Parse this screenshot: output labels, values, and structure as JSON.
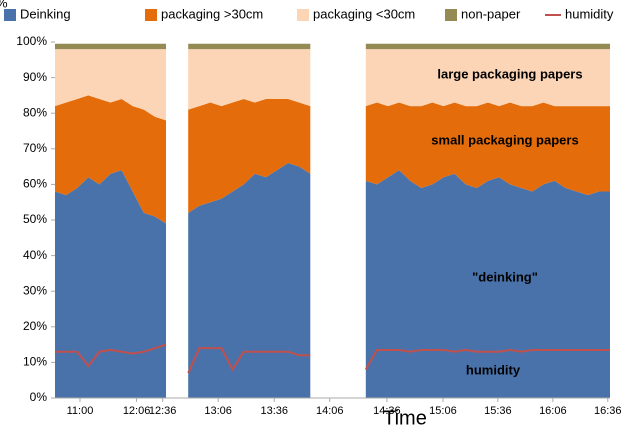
{
  "chart_data": {
    "type": "area",
    "stacked": true,
    "y_label": "%",
    "x_label": "Time",
    "annotations": [
      "large packaging papers",
      "small packaging papers",
      "\"deinking\"",
      "humidity"
    ],
    "x": [
      0,
      2,
      4,
      6,
      8,
      10,
      12,
      14,
      16,
      18,
      20,
      22,
      24,
      26,
      28,
      30,
      32,
      34,
      36,
      38,
      40,
      42,
      44,
      46,
      48,
      50,
      52,
      54,
      56,
      58,
      60,
      62,
      64,
      66,
      68,
      70,
      72,
      74,
      76,
      78,
      80,
      82,
      84,
      86,
      88,
      90,
      92,
      94,
      96,
      98,
      100
    ],
    "xlim": [
      0,
      100
    ],
    "xticks": [
      {
        "value": 4.5,
        "label": "11:00"
      },
      {
        "value": 14.7,
        "label": "12:06"
      },
      {
        "value": 19.4,
        "label": "12:36"
      },
      {
        "value": 29.4,
        "label": "13:06"
      },
      {
        "value": 39.5,
        "label": "13:36"
      },
      {
        "value": 49.5,
        "label": "14:06"
      },
      {
        "value": 59.8,
        "label": "14:36"
      },
      {
        "value": 69.9,
        "label": "15:06"
      },
      {
        "value": 79.8,
        "label": "15:36"
      },
      {
        "value": 89.7,
        "label": "16:06"
      },
      {
        "value": 99.6,
        "label": "16:36"
      }
    ],
    "ylim": [
      0,
      100
    ],
    "yticks": [
      {
        "value": 0,
        "label": "0%"
      },
      {
        "value": 10,
        "label": "10%"
      },
      {
        "value": 20,
        "label": "20%"
      },
      {
        "value": 30,
        "label": "30%"
      },
      {
        "value": 40,
        "label": "40%"
      },
      {
        "value": 50,
        "label": "50%"
      },
      {
        "value": 60,
        "label": "60%"
      },
      {
        "value": 70,
        "label": "70%"
      },
      {
        "value": 80,
        "label": "80%"
      },
      {
        "value": 90,
        "label": "90%"
      },
      {
        "value": 100,
        "label": "100%"
      }
    ],
    "legend": "top",
    "series": [
      {
        "name": "Deinking",
        "color": "#4a72aa",
        "values": [
          58,
          57,
          59,
          62,
          60,
          63,
          64,
          58,
          52,
          51,
          49,
          null,
          52,
          54,
          55,
          56,
          58,
          60,
          63,
          62,
          64,
          66,
          65,
          63,
          null,
          null,
          null,
          null,
          61,
          60,
          62,
          64,
          61,
          59,
          60,
          62,
          63,
          60,
          59,
          61,
          62,
          60,
          59,
          58,
          60,
          61,
          59,
          58,
          57,
          58,
          58
        ]
      },
      {
        "name": "packaging >30cm",
        "color": "#e46c0a",
        "values": [
          24,
          26,
          25,
          23,
          24,
          20,
          20,
          24,
          29,
          28,
          29,
          null,
          29,
          28,
          28,
          26,
          25,
          24,
          20,
          22,
          20,
          18,
          18,
          19,
          null,
          null,
          null,
          null,
          21,
          23,
          20,
          19,
          21,
          23,
          23,
          20,
          20,
          22,
          23,
          22,
          20,
          23,
          23,
          24,
          23,
          21,
          23,
          24,
          25,
          24,
          24
        ]
      },
      {
        "name": "packaging <30cm",
        "color": "#fbd5b5",
        "values": [
          16,
          15,
          14,
          13,
          14,
          15,
          14,
          16,
          17,
          19,
          20,
          null,
          17,
          16,
          15,
          16,
          15,
          14,
          15,
          14,
          14,
          14,
          15,
          16,
          null,
          null,
          null,
          null,
          16,
          15,
          16,
          15,
          16,
          16,
          15,
          16,
          15,
          16,
          16,
          15,
          16,
          15,
          16,
          16,
          15,
          16,
          16,
          16,
          16,
          16,
          16
        ]
      },
      {
        "name": "non-paper",
        "color": "#948a54",
        "values": [
          1.5,
          1.5,
          1.5,
          1.5,
          1.5,
          1.5,
          1.5,
          1.5,
          1.5,
          1.5,
          1.5,
          null,
          1.5,
          1.5,
          1.5,
          1.5,
          1.5,
          1.5,
          1.5,
          1.5,
          1.5,
          1.5,
          1.5,
          1.5,
          null,
          null,
          null,
          null,
          1.5,
          1.5,
          1.5,
          1.5,
          1.5,
          1.5,
          1.5,
          1.5,
          1.5,
          1.5,
          1.5,
          1.5,
          1.5,
          1.5,
          1.5,
          1.5,
          1.5,
          1.5,
          1.5,
          1.5,
          1.5,
          1.5,
          1.5
        ]
      },
      {
        "name": "humidity",
        "color": "#c0504d",
        "type": "line",
        "values": [
          13,
          13,
          13,
          9,
          13,
          13.5,
          13,
          12.5,
          13,
          14,
          15,
          null,
          7,
          14,
          14,
          14,
          8,
          13,
          13,
          13,
          13,
          13,
          12,
          12,
          null,
          null,
          null,
          null,
          8,
          13.5,
          13.5,
          13.5,
          13,
          13.5,
          13.5,
          13.5,
          13,
          13.5,
          13,
          13,
          13,
          13.5,
          13,
          13.5,
          13.5,
          13.5,
          13.5,
          13.5,
          13.5,
          13.5,
          13.5
        ]
      }
    ]
  }
}
